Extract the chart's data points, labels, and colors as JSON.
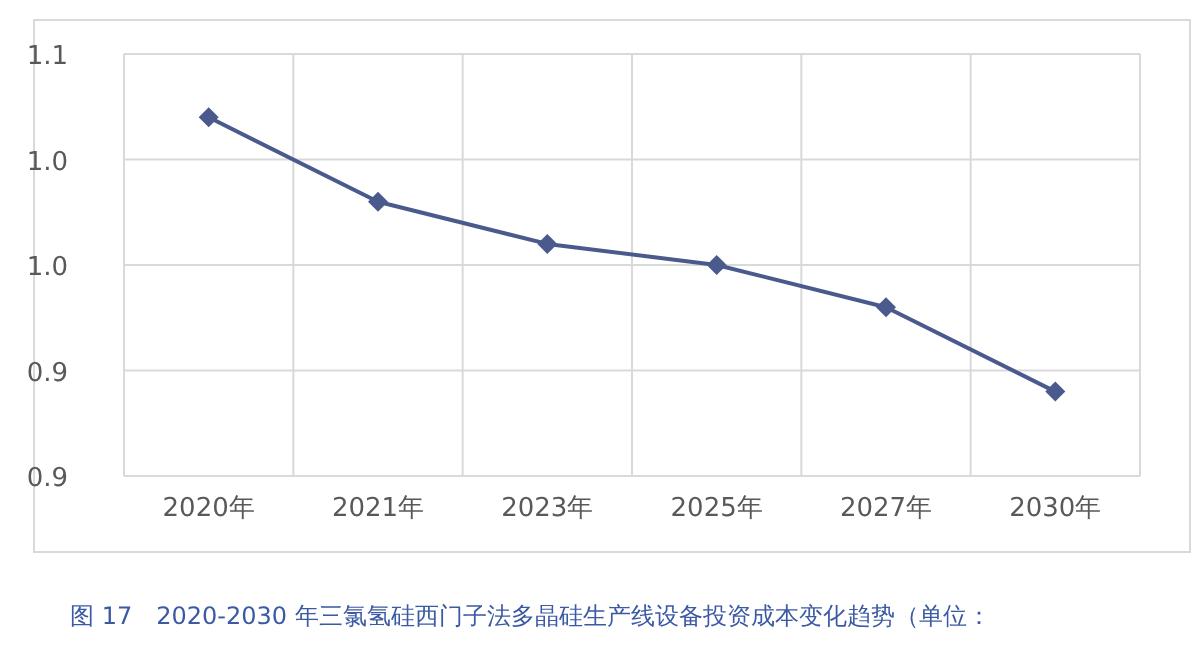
{
  "chart_data": {
    "type": "line",
    "categories": [
      "2020年",
      "2021年",
      "2023年",
      "2025年",
      "2027年",
      "2030年"
    ],
    "series": [
      {
        "color": "#4a5a8c",
        "values": [
          1.02,
          0.98,
          0.96,
          0.95,
          0.93,
          0.89
        ]
      }
    ],
    "ylim": [
      0.85,
      1.05
    ],
    "yticks": [
      {
        "value": 0.85,
        "label": "0.9"
      },
      {
        "value": 0.9,
        "label": "0.9"
      },
      {
        "value": 0.95,
        "label": "1.0"
      },
      {
        "value": 1.0,
        "label": "1.0"
      },
      {
        "value": 1.05,
        "label": "1.1"
      }
    ],
    "grid": true,
    "marker": "diamond",
    "line_style": "solid",
    "annotations": [
      "图 17　2020-2030 年三氯氢硅西门子法多晶硅生产线设备投资成本变化趋势（单位："
    ]
  }
}
